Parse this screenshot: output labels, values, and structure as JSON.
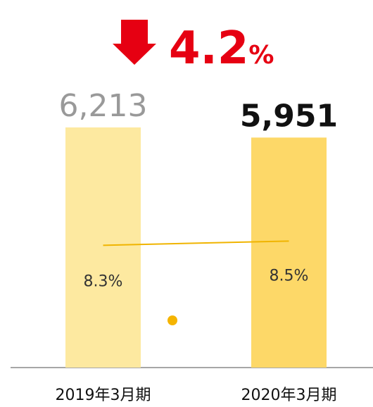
{
  "chart_data": {
    "type": "bar",
    "annotation": {
      "text": "4.2",
      "unit": "%",
      "color": "#e60012"
    },
    "categories": [
      "2019年3月期",
      "2020年3月期"
    ],
    "ylim": [
      0,
      9000
    ],
    "y2lim": [
      2.5,
      19
    ],
    "series": [
      {
        "type": "bar",
        "colors": [
          "#fde9a0",
          "#fdd868"
        ],
        "values": [
          6213,
          5951
        ],
        "value_labels": [
          "6,213",
          "5,951"
        ]
      },
      {
        "type": "line",
        "axis": "y2",
        "color": "#f0b400",
        "values": [
          8.3,
          8.5
        ],
        "value_labels": [
          "8.3%",
          "8.5%"
        ]
      }
    ]
  }
}
